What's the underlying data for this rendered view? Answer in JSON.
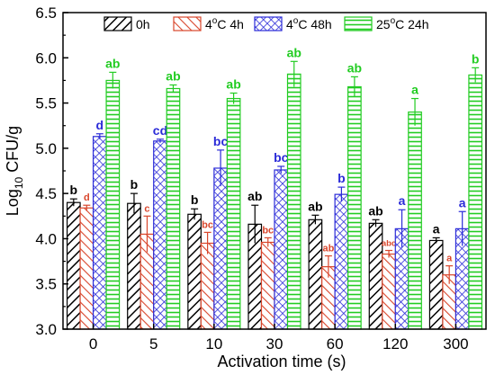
{
  "chart_data": {
    "type": "bar",
    "xlabel": "Activation time (s)",
    "ylabel": {
      "base": "Log",
      "sub": "10",
      "rest": " CFU/g"
    },
    "ylim": [
      3.0,
      6.5
    ],
    "yticks": [
      "3.0",
      "3.5",
      "4.0",
      "4.5",
      "5.0",
      "5.5",
      "6.0",
      "6.5"
    ],
    "categories": [
      "0",
      "5",
      "10",
      "30",
      "60",
      "120",
      "300"
    ],
    "legend_position": "top",
    "series": [
      {
        "name": "0h",
        "color": "#000000",
        "pattern": "diagonal-up",
        "values": [
          4.4,
          4.39,
          4.27,
          4.16,
          4.21,
          4.17,
          3.98
        ],
        "errors": [
          0.04,
          0.11,
          0.06,
          0.21,
          0.05,
          0.04,
          0.03
        ],
        "letters": [
          "b",
          "b",
          "b",
          "ab",
          "ab",
          "ab",
          "a"
        ]
      },
      {
        "name": "4°C 4h",
        "color": "#d9462c",
        "pattern": "diagonal-down",
        "values": [
          4.34,
          4.05,
          3.95,
          3.96,
          3.69,
          3.83,
          3.6
        ],
        "errors": [
          0.03,
          0.2,
          0.12,
          0.05,
          0.12,
          0.04,
          0.1
        ],
        "letters": [
          "d",
          "c",
          "bc",
          "bc",
          "ab",
          "abc",
          "a"
        ]
      },
      {
        "name": "4°C 48h",
        "color": "#2b2bd8",
        "pattern": "crosshatch",
        "values": [
          5.13,
          5.08,
          4.78,
          4.76,
          4.49,
          4.11,
          4.11
        ],
        "errors": [
          0.03,
          0.02,
          0.2,
          0.04,
          0.08,
          0.21,
          0.19
        ],
        "letters": [
          "d",
          "cd",
          "bc",
          "bc",
          "b",
          "a",
          "a"
        ]
      },
      {
        "name": "25°C 24h",
        "color": "#22cc22",
        "pattern": "horizontal",
        "values": [
          5.75,
          5.66,
          5.55,
          5.82,
          5.68,
          5.4,
          5.81
        ],
        "errors": [
          0.09,
          0.04,
          0.06,
          0.14,
          0.11,
          0.15,
          0.08
        ],
        "letters": [
          "ab",
          "ab",
          "ab",
          "ab",
          "ab",
          "a",
          "b"
        ]
      }
    ],
    "legend": [
      {
        "label": "0h"
      },
      {
        "label": "4",
        "sup": "o",
        "tail": "C 4h"
      },
      {
        "label": "4",
        "sup": "o",
        "tail": "C 48h"
      },
      {
        "label": "25",
        "sup": "o",
        "tail": "C 24h"
      }
    ]
  }
}
